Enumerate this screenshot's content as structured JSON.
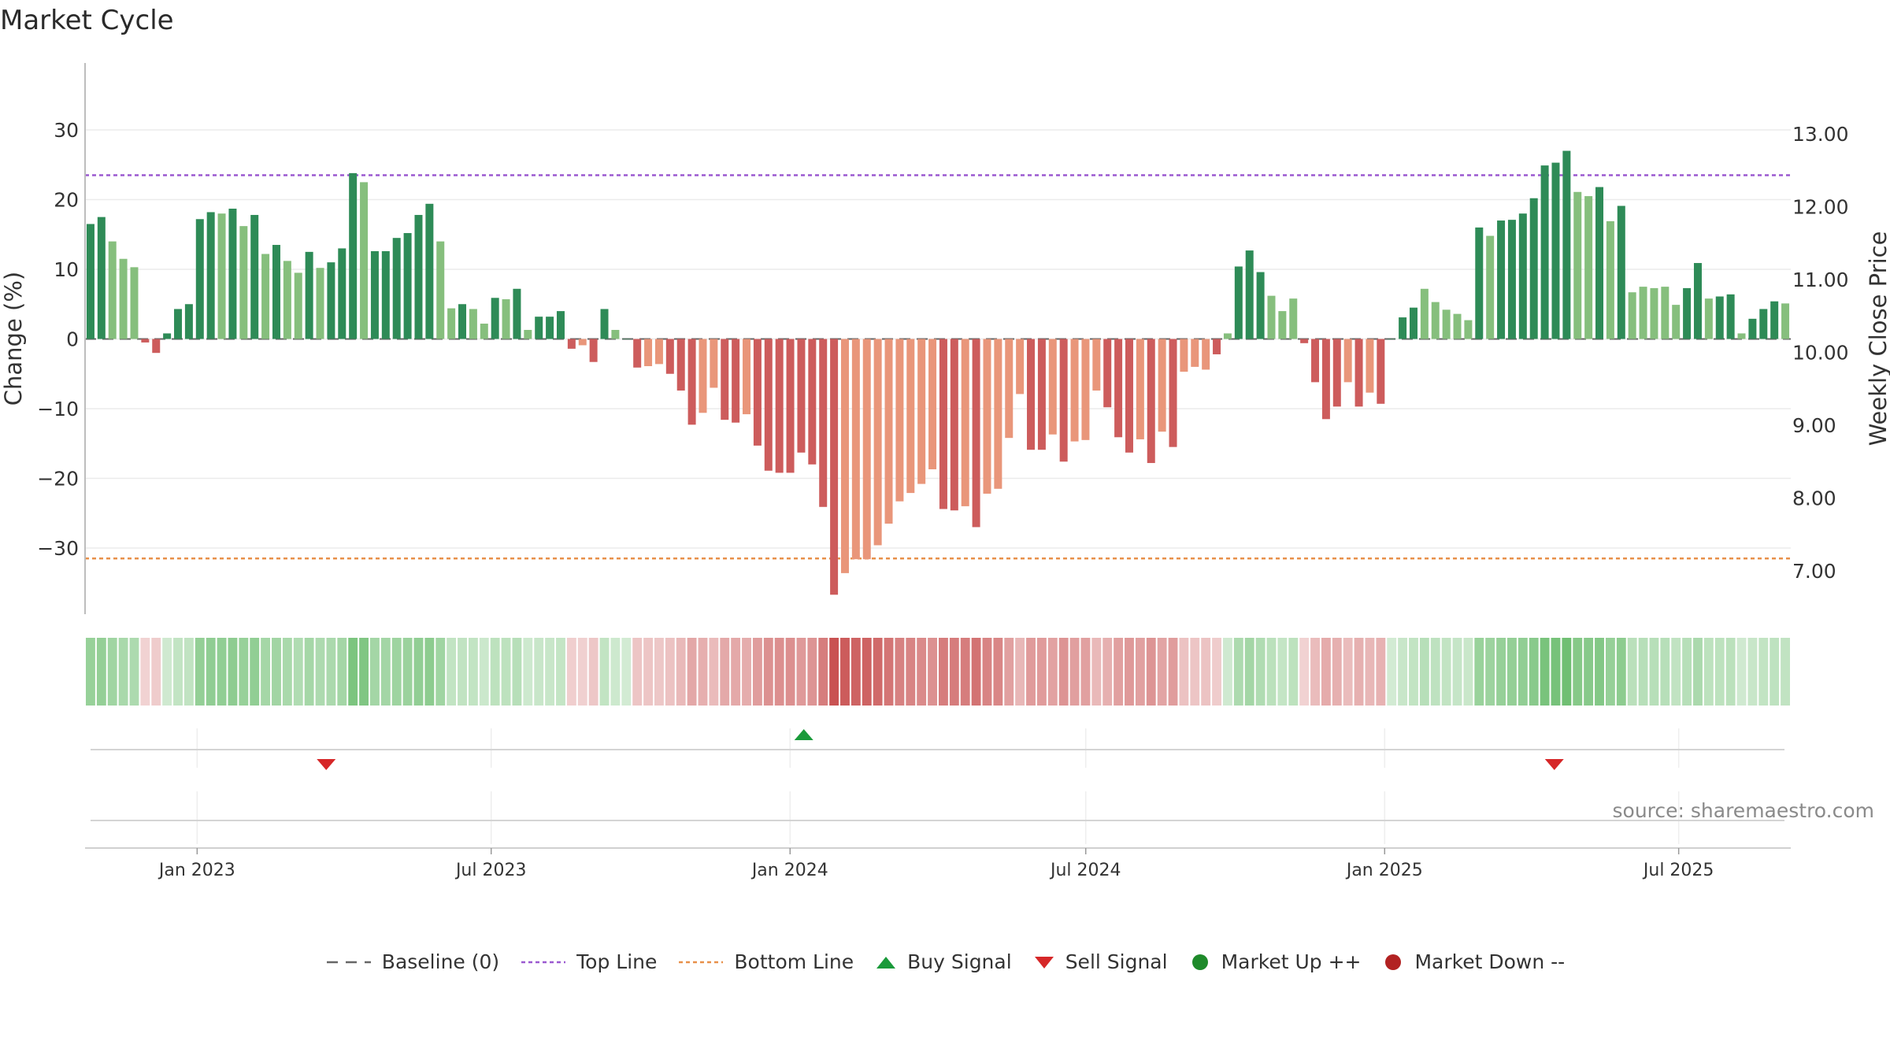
{
  "title": "Market Cycle",
  "source": "source: sharemaestro.com",
  "colors": {
    "up_strong": "#2e8b57",
    "up_light": "#86bf7d",
    "down_strong": "#cd5c5c",
    "down_light": "#e9967a",
    "top_line": "#9b59d0",
    "bottom_line": "#e8904a",
    "buy": "#1a9a3a",
    "sell": "#d62728",
    "market_up": "#1e8a2a",
    "market_down": "#b22222",
    "grid": "#ebebeb",
    "baseline": "#666666"
  },
  "legend": [
    {
      "label": "Baseline (0)",
      "icon": "dash-line",
      "color": "#666666"
    },
    {
      "label": "Top Line",
      "icon": "dotted-line",
      "color": "#9b59d0"
    },
    {
      "label": "Bottom Line",
      "icon": "dotted-line",
      "color": "#e8904a"
    },
    {
      "label": "Buy Signal",
      "icon": "triangle-up",
      "color": "#1a9a3a"
    },
    {
      "label": "Sell Signal",
      "icon": "triangle-down",
      "color": "#d62728"
    },
    {
      "label": "Market Up ++",
      "icon": "circle",
      "color": "#1e8a2a"
    },
    {
      "label": "Market Down --",
      "icon": "circle",
      "color": "#b22222"
    }
  ],
  "chart_data": {
    "type": "bar",
    "ylabel": "Change (%)",
    "y2label": "Weekly Close Price",
    "ylim": [
      -40,
      40
    ],
    "y_ticks": [
      30,
      20,
      10,
      0,
      -10,
      -20,
      -30
    ],
    "y_tick_labels": [
      "30",
      "20",
      "10",
      "0",
      "−10",
      "−20",
      "−30"
    ],
    "y2_ticks": [
      13,
      12,
      11,
      10,
      9,
      8,
      7
    ],
    "y2_tick_labels": [
      "13.00",
      "12.00",
      "11.00",
      "10.00",
      "9.00",
      "8.00",
      "7.00"
    ],
    "top_line": 23.5,
    "bottom_line": -31.5,
    "x_start": "2022-10-24",
    "x_end": "2025-09-08",
    "x_ticks": [
      "2023-01-01",
      "2023-07-01",
      "2024-01-01",
      "2024-07-01",
      "2025-01-01",
      "2025-07-01"
    ],
    "x_tick_labels": [
      "Jan 2023",
      "Jul 2023",
      "Jan 2024",
      "Jul 2024",
      "Jan 2025",
      "Jul 2025"
    ],
    "weeks_start": "2022-10-24",
    "values": [
      16.5,
      17.5,
      14,
      11.5,
      10.3,
      -0.5,
      -2,
      0.8,
      4.3,
      5,
      17.2,
      18.2,
      18,
      18.7,
      16.2,
      17.8,
      12.2,
      13.5,
      11.2,
      9.5,
      12.5,
      10.2,
      11,
      13,
      23.8,
      22.5,
      12.6,
      12.6,
      14.5,
      15.2,
      17.8,
      19.4,
      14,
      4.4,
      5,
      4.3,
      2.2,
      5.9,
      5.7,
      7.2,
      1.3,
      3.2,
      3.2,
      4,
      -1.4,
      -0.9,
      -3.3,
      4.3,
      1.3,
      0,
      -4.1,
      -3.9,
      -3.6,
      -5,
      -7.4,
      -12.3,
      -10.6,
      -7,
      -11.6,
      -12,
      -10.8,
      -15.3,
      -18.9,
      -19.2,
      -19.2,
      -16.3,
      -18,
      -24.1,
      -36.7,
      -33.6,
      -31.6,
      -31.6,
      -29.6,
      -26.5,
      -23.3,
      -22.1,
      -20.8,
      -18.7,
      -24.4,
      -24.6,
      -24,
      -27,
      -22.2,
      -21.5,
      -14.2,
      -7.9,
      -15.9,
      -15.9,
      -13.7,
      -17.6,
      -14.7,
      -14.5,
      -7.4,
      -9.8,
      -14.1,
      -16.3,
      -14.4,
      -17.8,
      -13.3,
      -15.5,
      -4.7,
      -4,
      -4.4,
      -2.2,
      0.8,
      10.4,
      12.7,
      9.6,
      6.2,
      4,
      5.8,
      -0.6,
      -6.2,
      -11.5,
      -9.7,
      -6.2,
      -9.7,
      -7.7,
      -9.3,
      0,
      3.1,
      4.5,
      7.2,
      5.3,
      4.2,
      3.6,
      2.7,
      16,
      14.8,
      17,
      17.1,
      18,
      20.2,
      24.9,
      25.3,
      27,
      21.1,
      20.5,
      21.8,
      16.9,
      19.1,
      6.7,
      7.5,
      7.3,
      7.5,
      4.9,
      7.3,
      10.9,
      5.8,
      6.1,
      6.4,
      0.8,
      2.9,
      4.3,
      5.4,
      5.1
    ],
    "strong": [
      1,
      1,
      0,
      0,
      0,
      1,
      1,
      1,
      1,
      1,
      1,
      1,
      0,
      1,
      0,
      1,
      0,
      1,
      0,
      0,
      1,
      0,
      1,
      1,
      1,
      0,
      1,
      1,
      1,
      1,
      1,
      1,
      0,
      0,
      1,
      0,
      0,
      1,
      0,
      1,
      0,
      1,
      1,
      1,
      1,
      0,
      1,
      1,
      0,
      1,
      1,
      0,
      0,
      1,
      1,
      1,
      0,
      0,
      1,
      1,
      0,
      1,
      1,
      1,
      1,
      1,
      1,
      1,
      1,
      0,
      0,
      0,
      0,
      0,
      0,
      0,
      0,
      0,
      1,
      1,
      0,
      1,
      0,
      0,
      0,
      0,
      1,
      1,
      0,
      1,
      0,
      0,
      0,
      1,
      1,
      1,
      0,
      1,
      0,
      1,
      0,
      0,
      0,
      1,
      0,
      1,
      1,
      1,
      0,
      0,
      0,
      1,
      1,
      1,
      1,
      0,
      1,
      0,
      1,
      1,
      1,
      1,
      0,
      0,
      0,
      0,
      0,
      1,
      0,
      1,
      1,
      1,
      1,
      1,
      1,
      1,
      0,
      0,
      1,
      0,
      1,
      0,
      0,
      0,
      0,
      0,
      1,
      1,
      0,
      1,
      1,
      0,
      1,
      1,
      1,
      0
    ],
    "heat_strip": "intensity per week shown as green/red band",
    "buy_signals": [
      "2024-01-08"
    ],
    "sell_signals": [
      "2023-03-20",
      "2025-04-14"
    ]
  }
}
